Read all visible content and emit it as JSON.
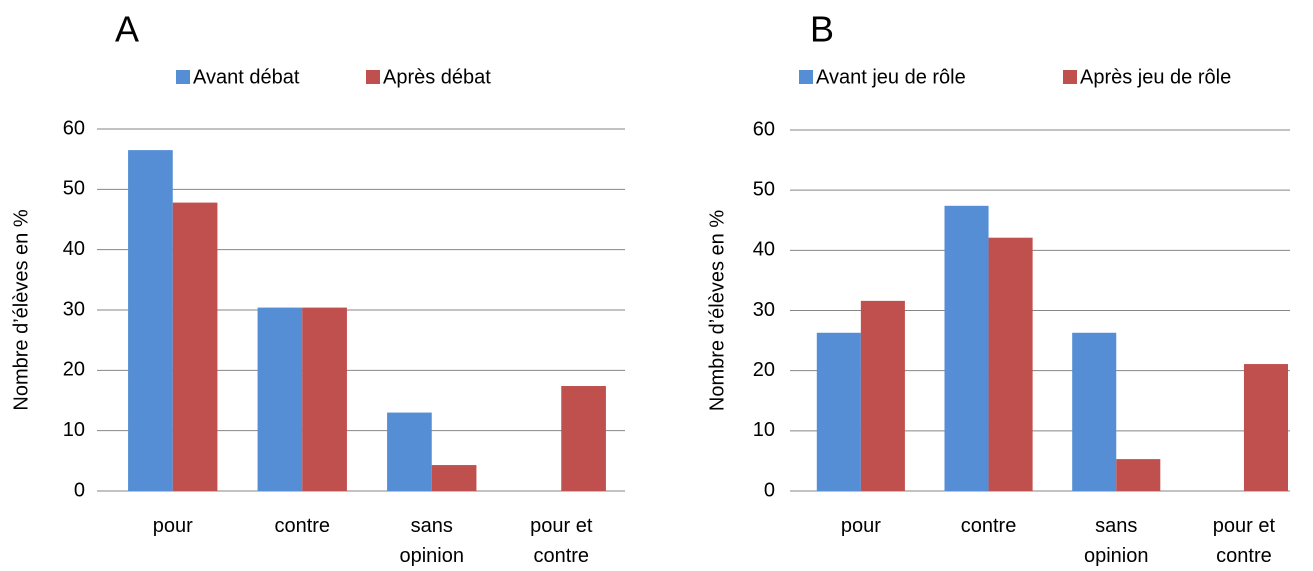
{
  "chart_data": [
    {
      "type": "bar",
      "title": "A",
      "ylabel": "Nombre d’élèves en %",
      "categories": [
        "pour",
        "contre",
        "sans opinion",
        "pour et contre"
      ],
      "series": [
        {
          "name": "Avant débat",
          "color": "#558ed5",
          "values": [
            56.5,
            30.4,
            13,
            0
          ]
        },
        {
          "name": "Après débat",
          "color": "#c0504d",
          "values": [
            47.8,
            30.4,
            4.3,
            17.4
          ]
        }
      ],
      "ylim": [
        0,
        60
      ],
      "yticks": [
        0,
        10,
        20,
        30,
        40,
        50,
        60
      ],
      "grid": true,
      "legend": "top"
    },
    {
      "type": "bar",
      "title": "B",
      "ylabel": "Nombre d’élèves en %",
      "categories": [
        "pour",
        "contre",
        "sans opinion",
        "pour et contre"
      ],
      "series": [
        {
          "name": "Avant jeu de rôle",
          "color": "#558ed5",
          "values": [
            26.3,
            47.4,
            26.3,
            0
          ]
        },
        {
          "name": "Après jeu de rôle",
          "color": "#c0504d",
          "values": [
            31.6,
            42.1,
            5.3,
            21.1
          ]
        }
      ],
      "ylim": [
        0,
        60
      ],
      "yticks": [
        0,
        10,
        20,
        30,
        40,
        50,
        60
      ],
      "grid": true,
      "legend": "top"
    }
  ]
}
